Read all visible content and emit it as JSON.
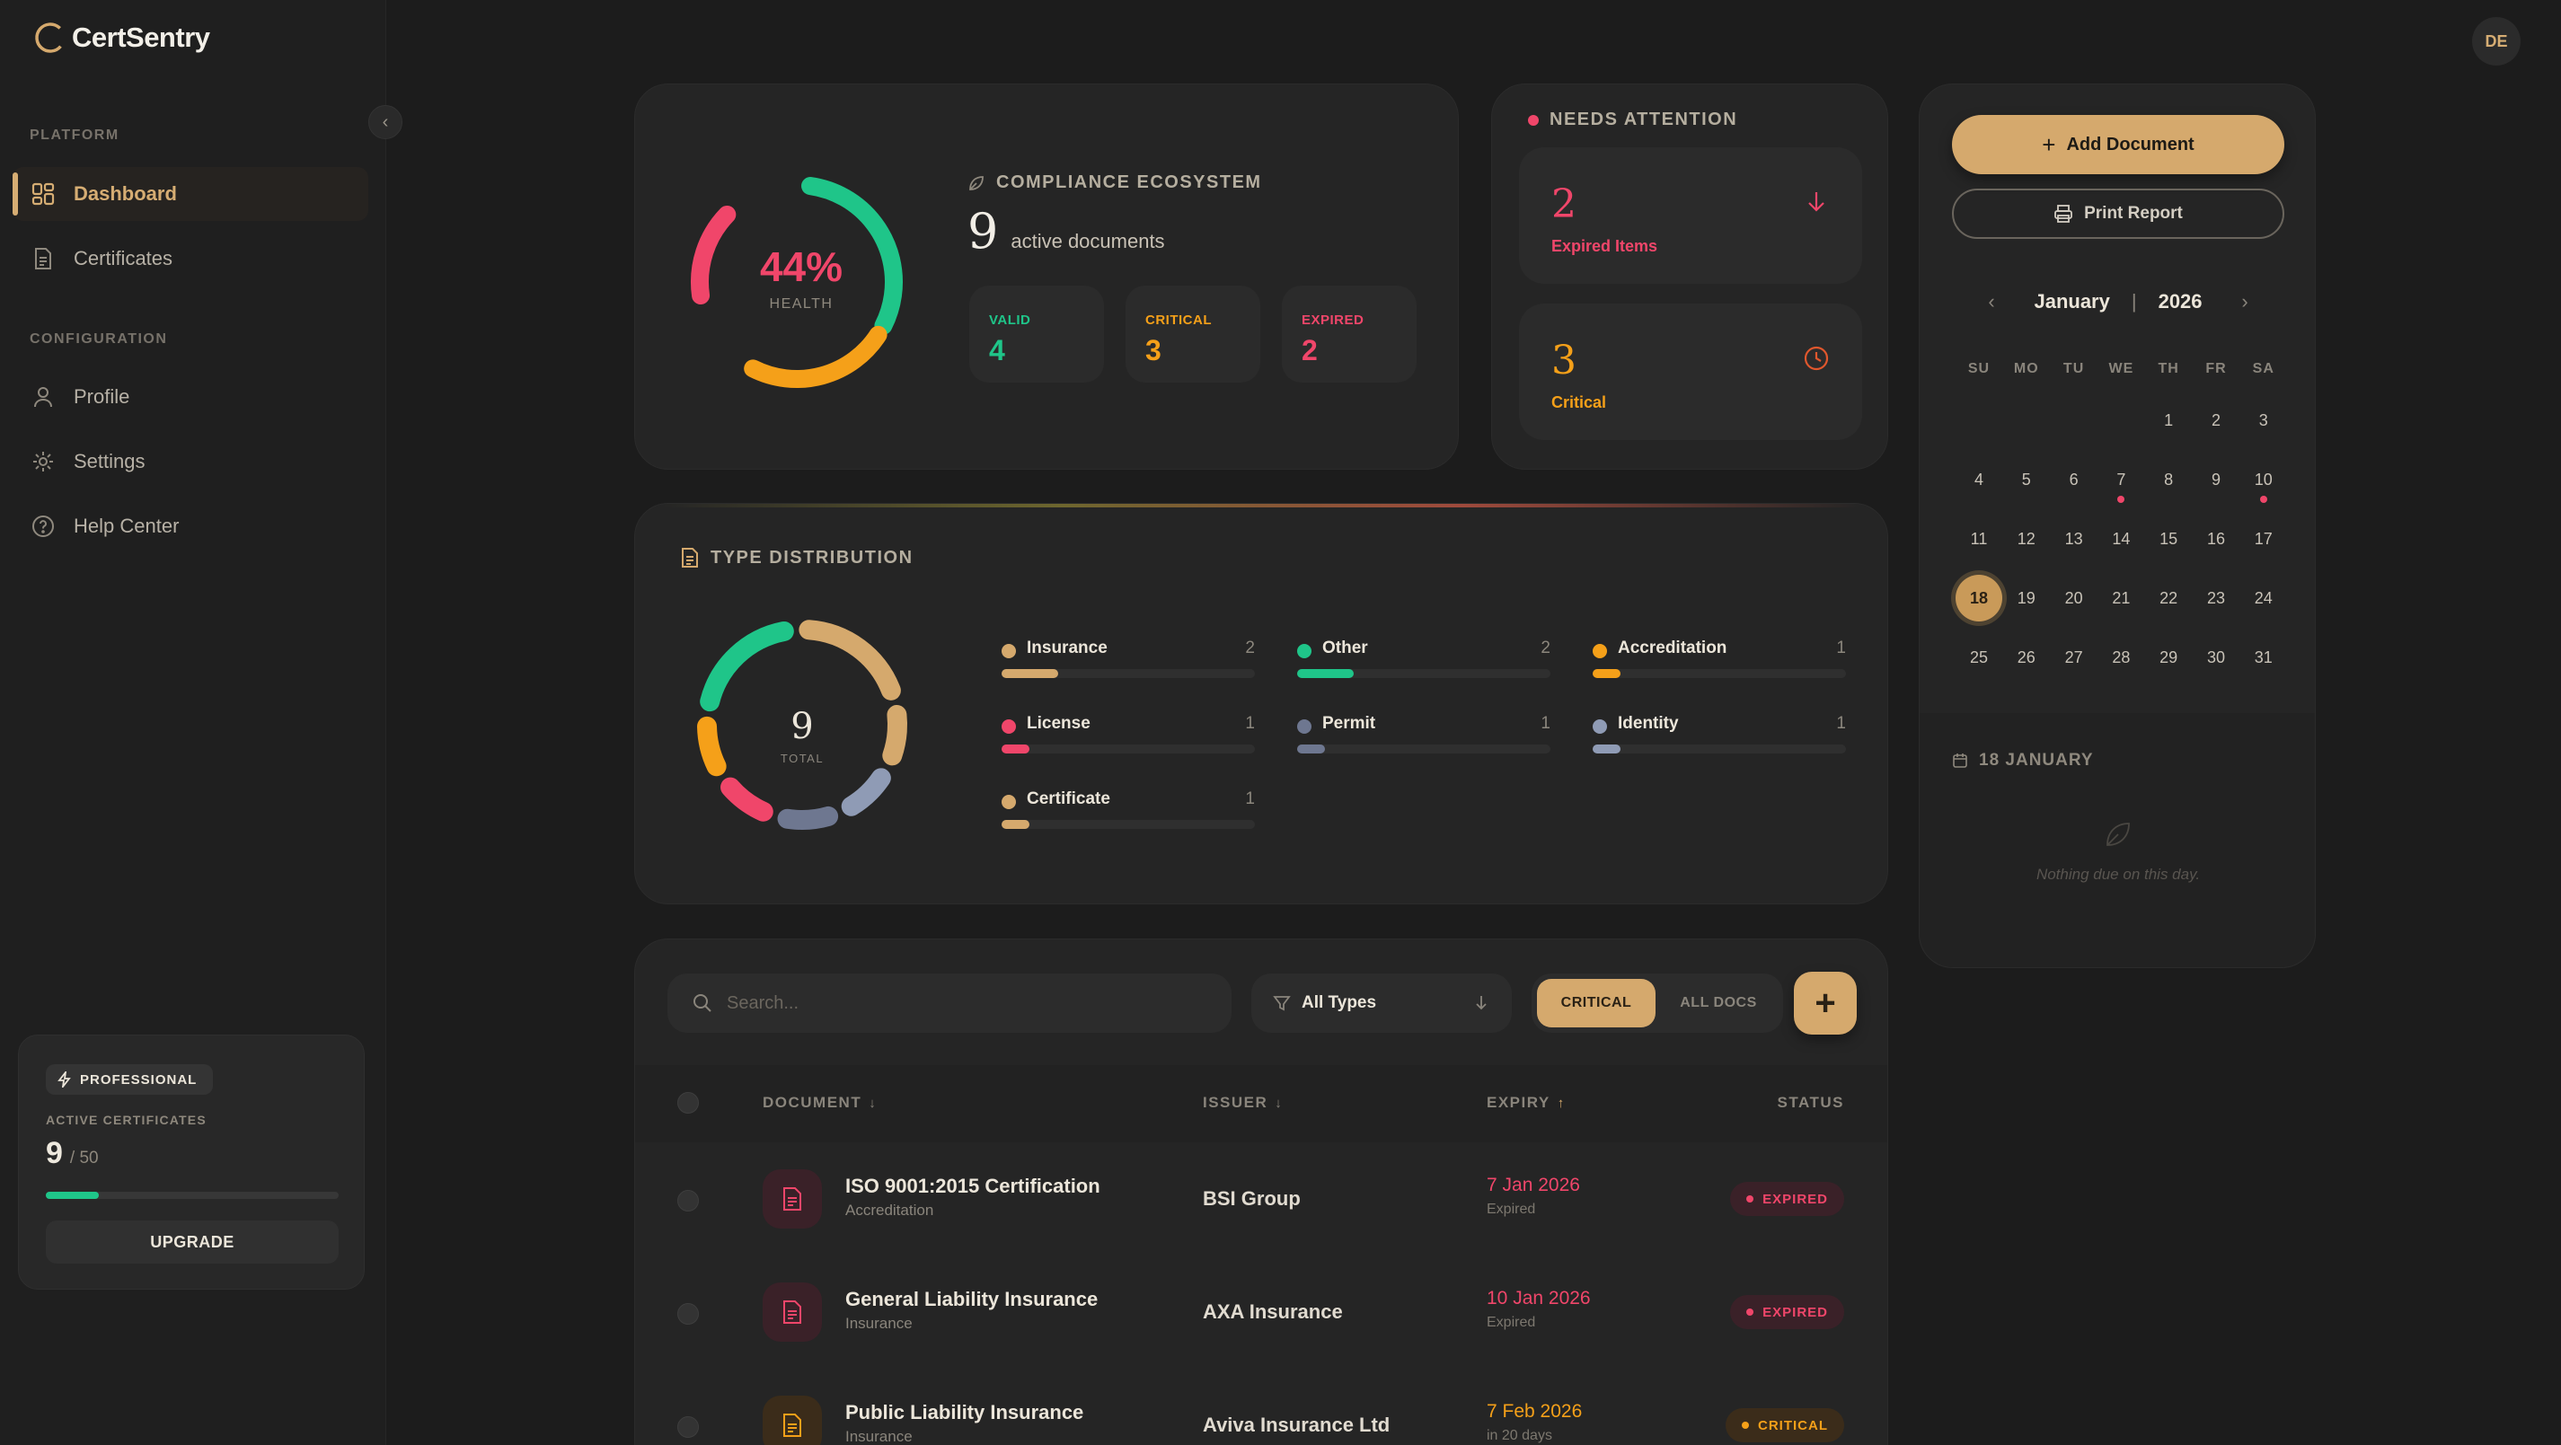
{
  "app": {
    "name": "CertSentry",
    "user_initials": "DE"
  },
  "sidebar": {
    "sections": [
      {
        "title": "PLATFORM"
      },
      {
        "title": "CONFIGURATION"
      }
    ],
    "items": [
      {
        "label": "Dashboard",
        "icon": "dashboard-icon",
        "active": true
      },
      {
        "label": "Certificates",
        "icon": "document-icon"
      },
      {
        "label": "Profile",
        "icon": "user-icon"
      },
      {
        "label": "Settings",
        "icon": "gear-icon"
      },
      {
        "label": "Help Center",
        "icon": "help-icon"
      }
    ],
    "plan": {
      "badge": "PROFESSIONAL",
      "label": "ACTIVE CERTIFICATES",
      "count": "9",
      "limit": "/ 50",
      "usage_fraction": 0.18,
      "button": "UPGRADE"
    }
  },
  "compliance": {
    "title": "COMPLIANCE ECOSYSTEM",
    "health_pct": "44%",
    "health_label": "HEALTH",
    "active_count": "9",
    "active_label": "active documents",
    "stats": [
      {
        "label": "VALID",
        "value": "4",
        "color": "#1fc589"
      },
      {
        "label": "CRITICAL",
        "value": "3",
        "color": "#f5a019"
      },
      {
        "label": "EXPIRED",
        "value": "2",
        "color": "#f0466a"
      }
    ]
  },
  "attention": {
    "title": "NEEDS ATTENTION",
    "items": [
      {
        "value": "2",
        "label": "Expired Items",
        "color": "#f0466a",
        "icon": "arrow-down-icon"
      },
      {
        "value": "3",
        "label": "Critical",
        "color": "#f5a019",
        "icon": "clock-icon"
      }
    ]
  },
  "type_distribution": {
    "title": "TYPE DISTRIBUTION",
    "total": "9",
    "total_label": "TOTAL",
    "items": [
      {
        "name": "Insurance",
        "count": "2",
        "value": 2,
        "color": "#d5a96d"
      },
      {
        "name": "Other",
        "count": "2",
        "value": 2,
        "color": "#1fc589"
      },
      {
        "name": "Accreditation",
        "count": "1",
        "value": 1,
        "color": "#f5a019"
      },
      {
        "name": "License",
        "count": "1",
        "value": 1,
        "color": "#f0466a"
      },
      {
        "name": "Permit",
        "count": "1",
        "value": 1,
        "color": "#6e7790"
      },
      {
        "name": "Identity",
        "count": "1",
        "value": 1,
        "color": "#8f9bb5"
      },
      {
        "name": "Certificate",
        "count": "1",
        "value": 1,
        "color": "#d5a96d"
      }
    ]
  },
  "toolbar": {
    "search_placeholder": "Search...",
    "type_filter": "All Types",
    "segments": [
      "CRITICAL",
      "ALL DOCS"
    ],
    "active_segment": "CRITICAL",
    "add_label": "+"
  },
  "table": {
    "columns": [
      "DOCUMENT",
      "ISSUER",
      "EXPIRY",
      "STATUS"
    ],
    "rows": [
      {
        "name": "ISO 9001:2015 Certification",
        "type": "Accreditation",
        "issuer": "BSI Group",
        "expiry": "7 Jan 2026",
        "expiry_sub": "Expired",
        "status": "EXPIRED",
        "color": "#f0466a"
      },
      {
        "name": "General Liability Insurance",
        "type": "Insurance",
        "issuer": "AXA Insurance",
        "expiry": "10 Jan 2026",
        "expiry_sub": "Expired",
        "status": "EXPIRED",
        "color": "#f0466a"
      },
      {
        "name": "Public Liability Insurance",
        "type": "Insurance",
        "issuer": "Aviva Insurance Ltd",
        "expiry": "7 Feb 2026",
        "expiry_sub": "in 20 days",
        "status": "CRITICAL",
        "color": "#f5a019"
      }
    ]
  },
  "calendar": {
    "add_button": "Add Document",
    "print_button": "Print Report",
    "month": "January",
    "separator": "|",
    "year": "2026",
    "weekdays": [
      "SU",
      "MO",
      "TU",
      "WE",
      "TH",
      "FR",
      "SA"
    ],
    "first_weekday": 4,
    "days_in_month": 31,
    "today": 18,
    "marked_days": [
      7,
      10
    ],
    "selected_title": "18 JANUARY",
    "empty_message": "Nothing due on this day."
  }
}
